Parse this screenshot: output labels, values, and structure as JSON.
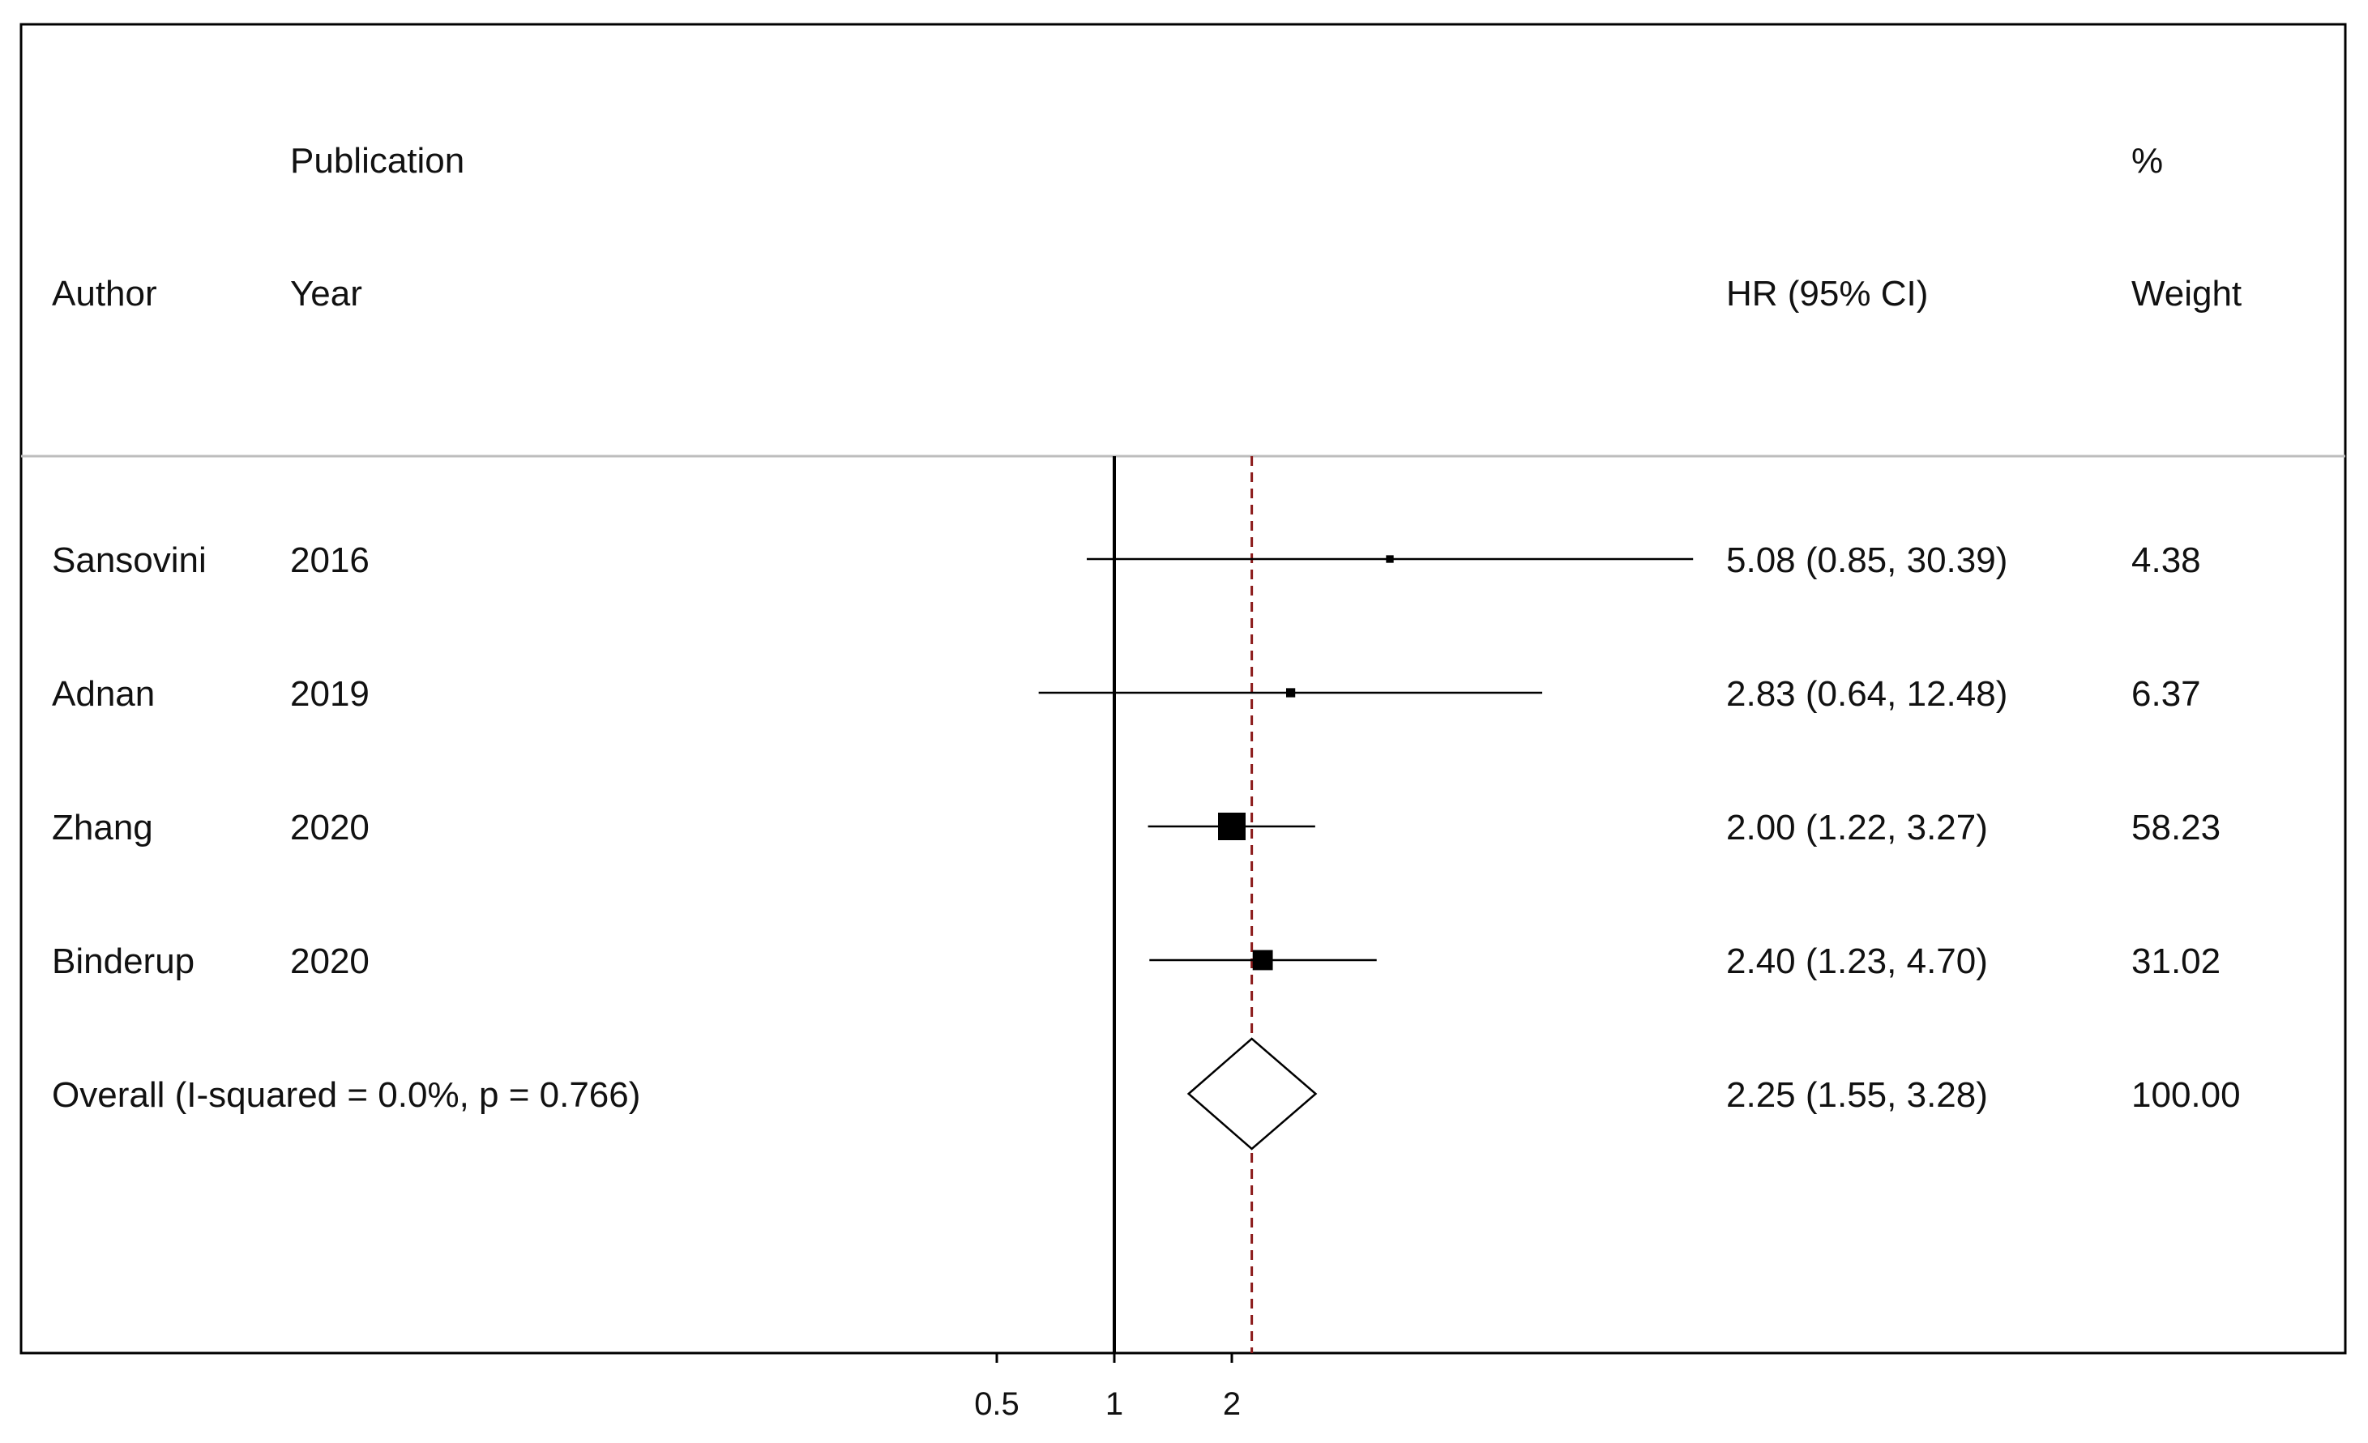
{
  "chart_data": {
    "type": "forest",
    "columns": {
      "author": "Author",
      "year_line1": "Publication",
      "year_line2": "Year",
      "effect": "HR (95% CI)",
      "weight_line1": "%",
      "weight_line2": "Weight"
    },
    "studies": [
      {
        "author": "Sansovini",
        "year": "2016",
        "hr": 5.08,
        "lower": 0.85,
        "upper": 30.39,
        "weight": 4.38,
        "ci_text": "5.08 (0.85, 30.39)",
        "weight_text": "4.38"
      },
      {
        "author": "Adnan",
        "year": "2019",
        "hr": 2.83,
        "lower": 0.64,
        "upper": 12.48,
        "weight": 6.37,
        "ci_text": "2.83 (0.64, 12.48)",
        "weight_text": "6.37"
      },
      {
        "author": "Zhang",
        "year": "2020",
        "hr": 2.0,
        "lower": 1.22,
        "upper": 3.27,
        "weight": 58.23,
        "ci_text": "2.00 (1.22, 3.27)",
        "weight_text": "58.23"
      },
      {
        "author": "Binderup",
        "year": "2020",
        "hr": 2.4,
        "lower": 1.23,
        "upper": 4.7,
        "weight": 31.02,
        "ci_text": "2.40 (1.23, 4.70)",
        "weight_text": "31.02"
      }
    ],
    "overall": {
      "label": "Overall  (I-squared = 0.0%, p = 0.766)",
      "hr": 2.25,
      "lower": 1.55,
      "upper": 3.28,
      "weight": 100.0,
      "ci_text": "2.25 (1.55, 3.28)",
      "weight_text": "100.00"
    },
    "x_scale": "log",
    "x_ticks": [
      {
        "value": 0.5,
        "label": "0.5"
      },
      {
        "value": 1,
        "label": "1"
      },
      {
        "value": 2,
        "label": "2"
      }
    ],
    "null_line": 1,
    "overall_line_color": "#8b1a1a",
    "marker_color": "#000000"
  }
}
